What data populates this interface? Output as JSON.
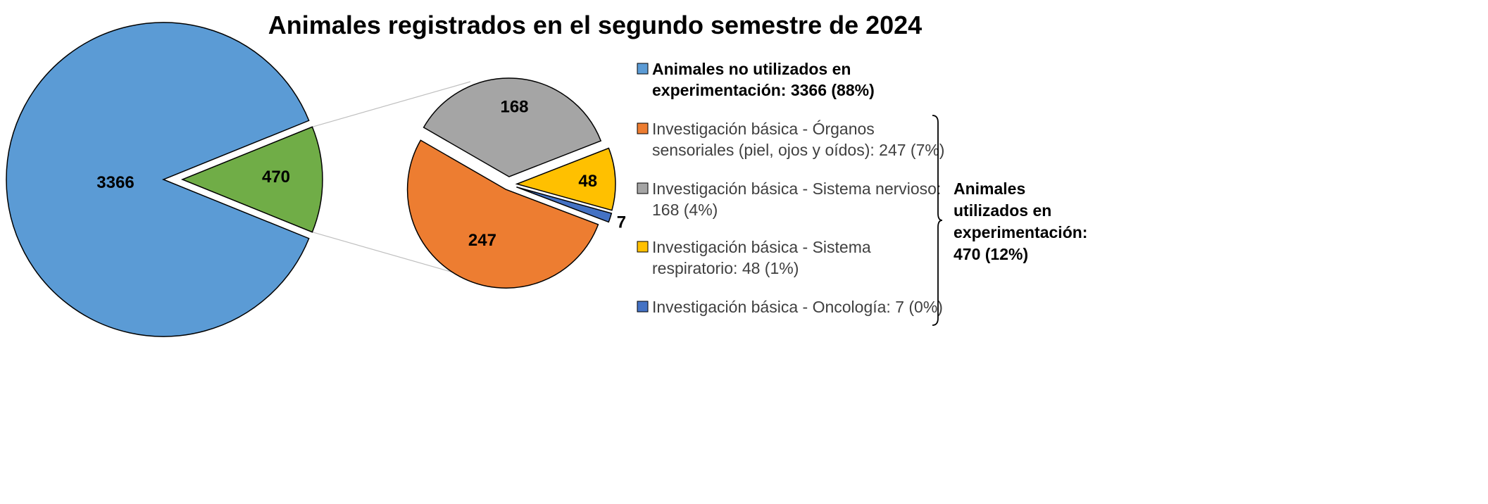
{
  "chart_data": {
    "type": "pie",
    "title": "Animales registrados en el segundo semestre de 2024",
    "main_pie": {
      "slices": [
        {
          "label": "3366",
          "value": 3366,
          "color": "#5B9BD5"
        },
        {
          "label": "470",
          "value": 470,
          "color": "#70AD47"
        }
      ]
    },
    "sub_pie": {
      "slices": [
        {
          "label": "168",
          "value": 168,
          "color": "#A5A5A5"
        },
        {
          "label": "48",
          "value": 48,
          "color": "#FFC000"
        },
        {
          "label": "7",
          "value": 7,
          "color": "#4472C4"
        },
        {
          "label": "247",
          "value": 247,
          "color": "#ED7D31"
        }
      ]
    },
    "legend": [
      {
        "text_lines": [
          "Animales no utilizados en",
          "experimentación: 3366 (88%)"
        ],
        "color": "#5B9BD5",
        "bold": true
      },
      {
        "text_lines": [
          "Investigación básica - Órganos",
          "sensoriales (piel, ojos y oídos): 247 (7%)"
        ],
        "color": "#ED7D31",
        "bold": false
      },
      {
        "text_lines": [
          "Investigación básica - Sistema nervioso:",
          "168 (4%)"
        ],
        "color": "#A5A5A5",
        "bold": false
      },
      {
        "text_lines": [
          "Investigación básica - Sistema",
          "respiratorio: 48 (1%)"
        ],
        "color": "#FFC000",
        "bold": false
      },
      {
        "text_lines": [
          "Investigación básica - Oncología: 7 (0%)"
        ],
        "color": "#4472C4",
        "bold": false
      }
    ],
    "bracket_label_lines": [
      "Animales",
      "utilizados en",
      "experimentación:",
      "470 (12%)"
    ]
  }
}
